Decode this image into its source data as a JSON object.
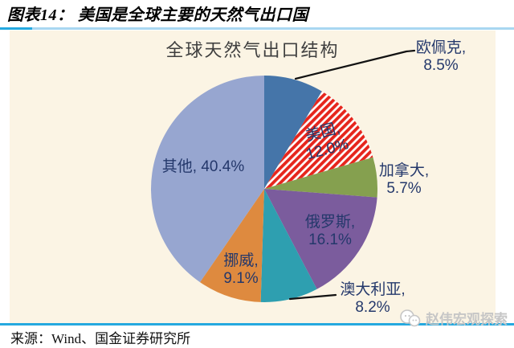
{
  "header": {
    "title": "图表14： 美国是全球主要的天然气出口国"
  },
  "chart_data": {
    "type": "pie",
    "title": "全球天然气出口结构",
    "unit": "%",
    "direction": "clockwise",
    "start_angle_deg": 0,
    "legend": "none (direct slice labels)",
    "series": [
      {
        "label": "欧佩克",
        "value": 8.5,
        "color": "#4575A9",
        "hatch": false
      },
      {
        "label": "美国",
        "value": 12.0,
        "color": "#E6251C",
        "hatch": true,
        "hatch_stripe_color": "#FFFFFF"
      },
      {
        "label": "加拿大",
        "value": 5.7,
        "color": "#85A04F",
        "hatch": false
      },
      {
        "label": "俄罗斯",
        "value": 16.1,
        "color": "#7B5C9D",
        "hatch": false
      },
      {
        "label": "澳大利亚",
        "value": 8.2,
        "color": "#2E9FB0",
        "hatch": false
      },
      {
        "label": "挪威",
        "value": 9.1,
        "color": "#DE8A3F",
        "hatch": false
      },
      {
        "label": "其他",
        "value": 40.4,
        "color": "#97A6D0",
        "hatch": false
      }
    ]
  },
  "labels": {
    "opec": {
      "line1": "欧佩克,",
      "line2": "8.5%"
    },
    "usa": {
      "line1": "美国,",
      "line2": "12.0%"
    },
    "canada": {
      "line1": "加拿大,",
      "line2": "5.7%"
    },
    "russia": {
      "line1": "俄罗斯,",
      "line2": "16.1%"
    },
    "australia": {
      "line1": "澳大利亚,",
      "line2": "8.2%"
    },
    "norway": {
      "line1": "挪威,",
      "line2": "9.1%"
    },
    "others": {
      "line1": "其他, 40.4%"
    }
  },
  "footer": {
    "source": "来源：Wind、国金证券研究所",
    "watermark": "赵伟宏观探索"
  },
  "colors": {
    "divider_accent": "#25A9DF",
    "divider_light": "#A9D7F1",
    "panel_background": "#FBF4E4",
    "label_text": "#24386B",
    "chart_title_text": "#3F3F3F",
    "leader_line": "#121212",
    "watermark_gray": "#C6C6C6"
  }
}
